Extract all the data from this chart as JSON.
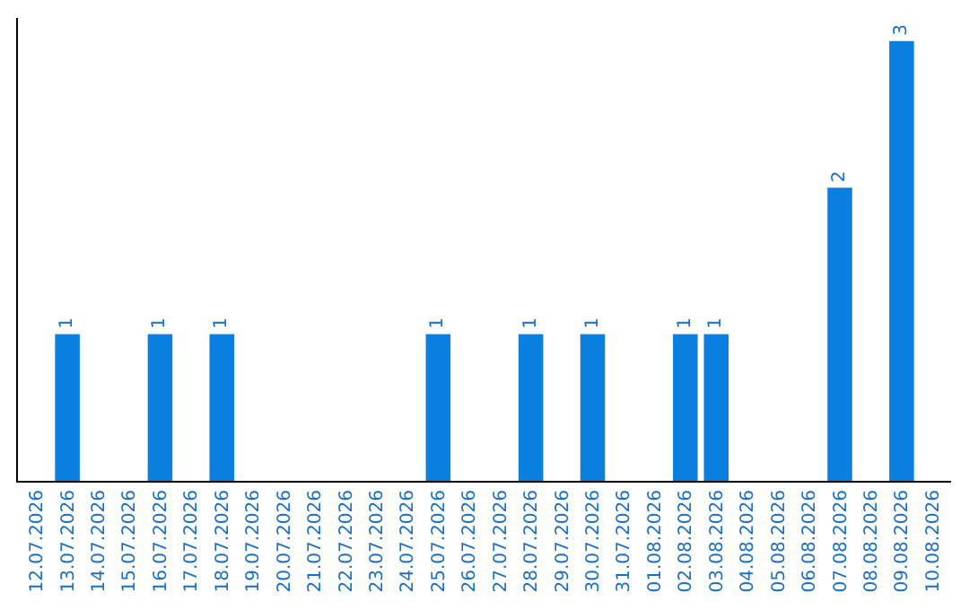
{
  "chart_data": {
    "type": "bar",
    "categories": [
      "12.07.2026",
      "13.07.2026",
      "14.07.2026",
      "15.07.2026",
      "16.07.2026",
      "17.07.2026",
      "18.07.2026",
      "19.07.2026",
      "20.07.2026",
      "21.07.2026",
      "22.07.2026",
      "23.07.2026",
      "24.07.2026",
      "25.07.2026",
      "26.07.2026",
      "27.07.2026",
      "28.07.2026",
      "29.07.2026",
      "30.07.2026",
      "31.07.2026",
      "01.08.2026",
      "02.08.2026",
      "03.08.2026",
      "04.08.2026",
      "05.08.2026",
      "06.08.2026",
      "07.08.2026",
      "08.08.2026",
      "09.08.2026",
      "10.08.2026"
    ],
    "values": [
      0,
      1,
      0,
      0,
      1,
      0,
      1,
      0,
      0,
      0,
      0,
      0,
      0,
      1,
      0,
      0,
      1,
      0,
      1,
      0,
      0,
      1,
      1,
      0,
      0,
      0,
      2,
      0,
      3,
      0
    ],
    "value_labels": [
      null,
      "1",
      null,
      null,
      "1",
      null,
      "1",
      null,
      null,
      null,
      null,
      null,
      null,
      "1",
      null,
      null,
      "1",
      null,
      "1",
      null,
      null,
      "1",
      "1",
      null,
      null,
      null,
      "2",
      null,
      "3",
      null
    ],
    "color": "#0a7fe0",
    "tick_labels": "x",
    "legend": false
  }
}
